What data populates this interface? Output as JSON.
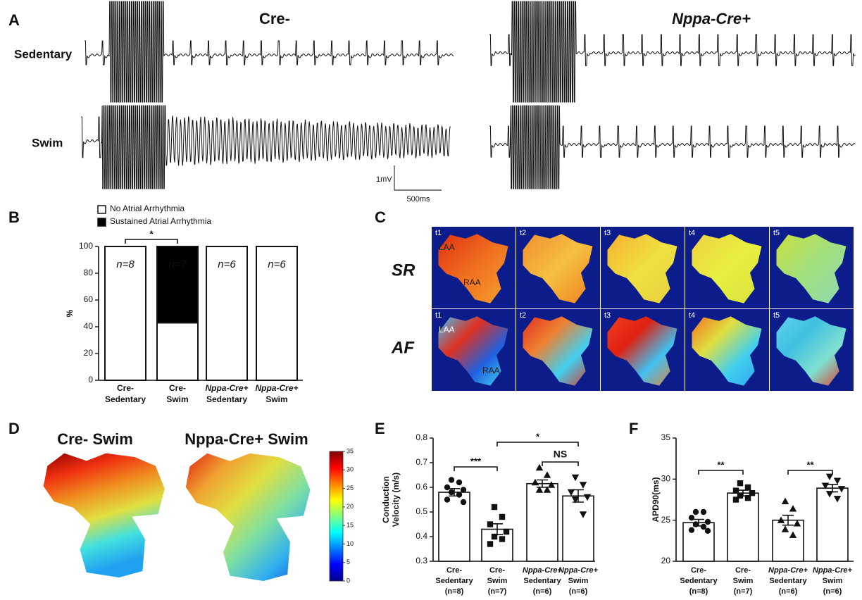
{
  "panel_a": {
    "label": "A",
    "columns": [
      "Cre-",
      "Nppa-Cre+"
    ],
    "rows": [
      "Sedentary",
      "Swim"
    ],
    "scale_v": "1mV",
    "scale_h": "500ms"
  },
  "panel_c": {
    "label": "C",
    "rows": [
      "SR",
      "AF"
    ],
    "times": [
      "t1",
      "t2",
      "t3",
      "t4",
      "t5"
    ],
    "regions": [
      "LAA",
      "RAA"
    ]
  },
  "panel_d": {
    "label": "D",
    "titles": [
      "Cre- Swim",
      "Nppa-Cre+ Swim"
    ]
  },
  "chart_data": [
    {
      "type": "stacked_bar",
      "panel": "B",
      "categories": [
        [
          "Cre-",
          "Sedentary"
        ],
        [
          "Cre-",
          "Swim"
        ],
        [
          "Nppa-Cre+",
          "Sedentary"
        ],
        [
          "Nppa-Cre+",
          "Swim"
        ]
      ],
      "series": [
        {
          "name": "No Atrial Arrhythmia",
          "color": "#ffffff",
          "values": [
            100,
            43,
            100,
            100
          ]
        },
        {
          "name": "Sustained Atrial Arrhythmia",
          "color": "#000000",
          "values": [
            0,
            57,
            0,
            0
          ]
        }
      ],
      "bar_labels": [
        "n=8",
        "n=7",
        "n=6",
        "n=6"
      ],
      "ylabel": [
        "%"
      ],
      "ylim": [
        0,
        100
      ],
      "yticks": [
        0,
        20,
        40,
        60,
        80,
        100
      ],
      "significance": [
        {
          "text": "*",
          "pair": [
            0,
            1
          ]
        }
      ]
    },
    {
      "type": "colorbar",
      "ylim": [
        0,
        35
      ],
      "yticks": [
        0,
        5,
        10,
        15,
        20,
        25,
        30,
        35
      ],
      "colors": [
        "#00008f",
        "#0000ff",
        "#0080ff",
        "#00ffff",
        "#80ff80",
        "#ffff00",
        "#ff8000",
        "#ff0000",
        "#800000"
      ]
    },
    {
      "type": "bar_scatter",
      "panel": "E",
      "categories": [
        [
          "Cre-",
          "Sedentary",
          "(n=8)"
        ],
        [
          "Cre-",
          "Swim",
          "(n=7)"
        ],
        [
          "Nppa-Cre+",
          "Sedentary",
          "(n=6)"
        ],
        [
          "Nppa-Cre+",
          "Swim",
          "(n=6)"
        ]
      ],
      "values": [
        0.58,
        0.43,
        0.615,
        0.565
      ],
      "errors": [
        0.015,
        0.022,
        0.015,
        0.025
      ],
      "points": [
        [
          0.63,
          0.62,
          0.6,
          0.59,
          0.58,
          0.57,
          0.55,
          0.54
        ],
        [
          0.52,
          0.48,
          0.45,
          0.42,
          0.4,
          0.39,
          0.37
        ],
        [
          0.68,
          0.65,
          0.62,
          0.61,
          0.59,
          0.59
        ],
        [
          0.64,
          0.61,
          0.58,
          0.56,
          0.55,
          0.49
        ]
      ],
      "markers": [
        "circle",
        "square",
        "triangle-up",
        "triangle-down"
      ],
      "ylabel": [
        "Conduction",
        "Velocity  (m/s)"
      ],
      "ylim": [
        0.3,
        0.8
      ],
      "yticks": [
        0.3,
        0.4,
        0.5,
        0.6,
        0.7,
        0.8
      ],
      "significance": [
        {
          "text": "***",
          "pair": [
            0,
            1
          ]
        },
        {
          "text": "*",
          "pair": [
            1,
            3
          ]
        },
        {
          "text": "NS",
          "pair": [
            2,
            3
          ]
        }
      ]
    },
    {
      "type": "bar_scatter",
      "panel": "F",
      "categories": [
        [
          "Cre-",
          "Sedentary",
          "(n=8)"
        ],
        [
          "Cre-",
          "Swim",
          "(n=7)"
        ],
        [
          "Nppa-Cre+",
          "Sedentary",
          "(n=6)"
        ],
        [
          "Nppa-Cre+",
          "Swim",
          "(n=6)"
        ]
      ],
      "values": [
        24.7,
        28.3,
        25.0,
        28.9
      ],
      "errors": [
        0.4,
        0.35,
        0.6,
        0.45
      ],
      "points": [
        [
          26.0,
          26.0,
          25.3,
          24.8,
          24.5,
          24.2,
          23.8,
          23.7
        ],
        [
          29.5,
          29.0,
          28.6,
          28.3,
          28.0,
          27.7,
          27.5
        ],
        [
          27.3,
          26.4,
          25.0,
          24.6,
          23.9,
          23.2
        ],
        [
          30.3,
          29.8,
          29.2,
          28.8,
          28.2,
          27.6
        ]
      ],
      "markers": [
        "circle",
        "square",
        "triangle-up",
        "triangle-down"
      ],
      "ylabel": [
        "APD90(ms)"
      ],
      "ylim": [
        20,
        35
      ],
      "yticks": [
        20,
        25,
        30,
        35
      ],
      "significance": [
        {
          "text": "**",
          "pair": [
            0,
            1
          ]
        },
        {
          "text": "**",
          "pair": [
            2,
            3
          ]
        }
      ]
    }
  ]
}
